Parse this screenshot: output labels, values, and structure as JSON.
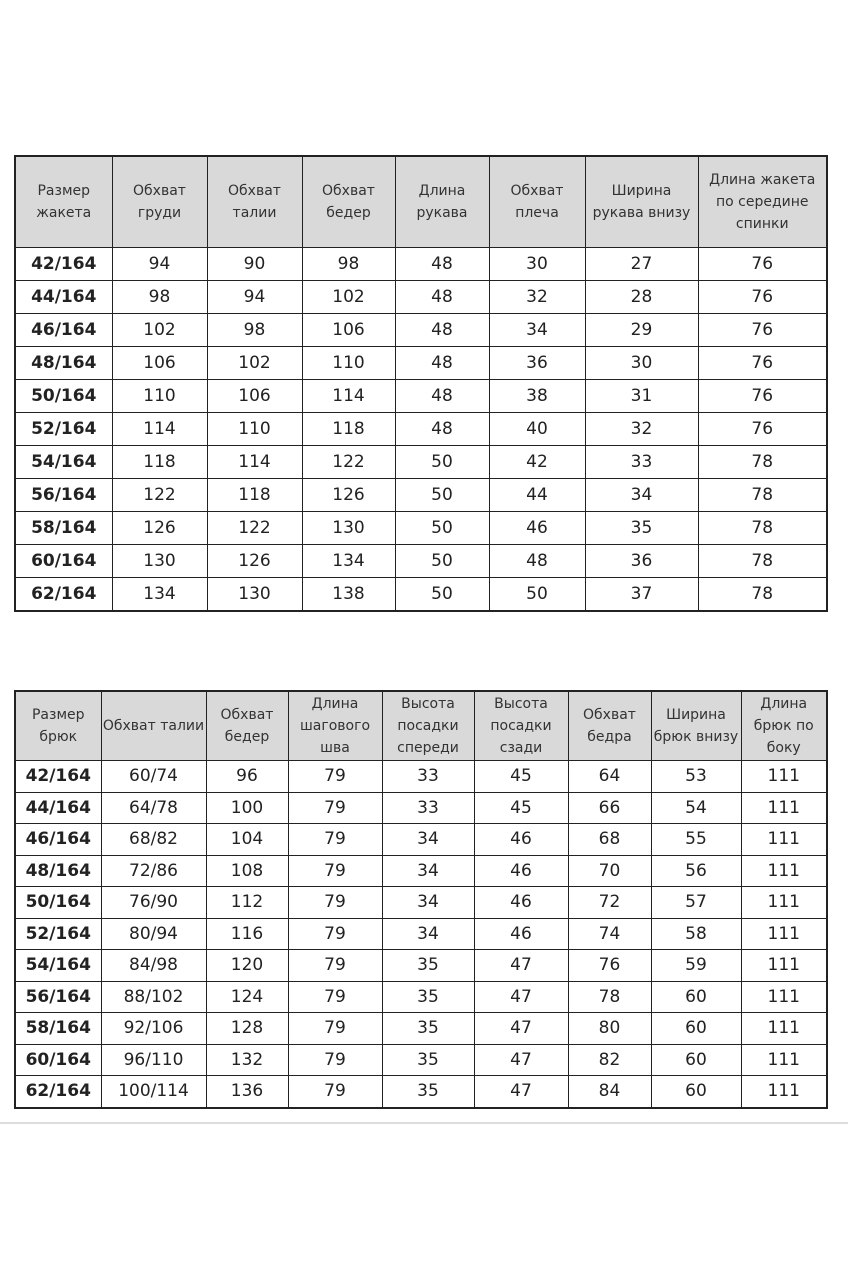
{
  "jacket_table": {
    "headers": [
      "Размер жакета",
      "Обхват груди",
      "Обхват талии",
      "Обхват бедер",
      "Длина рукава",
      "Обхват плеча",
      "Ширина рукава внизу",
      "Длина жакета по середине спинки"
    ],
    "rows": [
      [
        "42/164",
        "94",
        "90",
        "98",
        "48",
        "30",
        "27",
        "76"
      ],
      [
        "44/164",
        "98",
        "94",
        "102",
        "48",
        "32",
        "28",
        "76"
      ],
      [
        "46/164",
        "102",
        "98",
        "106",
        "48",
        "34",
        "29",
        "76"
      ],
      [
        "48/164",
        "106",
        "102",
        "110",
        "48",
        "36",
        "30",
        "76"
      ],
      [
        "50/164",
        "110",
        "106",
        "114",
        "48",
        "38",
        "31",
        "76"
      ],
      [
        "52/164",
        "114",
        "110",
        "118",
        "48",
        "40",
        "32",
        "76"
      ],
      [
        "54/164",
        "118",
        "114",
        "122",
        "50",
        "42",
        "33",
        "78"
      ],
      [
        "56/164",
        "122",
        "118",
        "126",
        "50",
        "44",
        "34",
        "78"
      ],
      [
        "58/164",
        "126",
        "122",
        "130",
        "50",
        "46",
        "35",
        "78"
      ],
      [
        "60/164",
        "130",
        "126",
        "134",
        "50",
        "48",
        "36",
        "78"
      ],
      [
        "62/164",
        "134",
        "130",
        "138",
        "50",
        "50",
        "37",
        "78"
      ]
    ]
  },
  "trousers_table": {
    "headers": [
      "Размер брюк",
      "Обхват талии",
      "Обхват бедер",
      "Длина шагового шва",
      "Высота посадки спереди",
      "Высота посадки сзади",
      "Обхват бедра",
      "Ширина брюк внизу",
      "Длина брюк по боку"
    ],
    "rows": [
      [
        "42/164",
        "60/74",
        "96",
        "79",
        "33",
        "45",
        "64",
        "53",
        "111"
      ],
      [
        "44/164",
        "64/78",
        "100",
        "79",
        "33",
        "45",
        "66",
        "54",
        "111"
      ],
      [
        "46/164",
        "68/82",
        "104",
        "79",
        "34",
        "46",
        "68",
        "55",
        "111"
      ],
      [
        "48/164",
        "72/86",
        "108",
        "79",
        "34",
        "46",
        "70",
        "56",
        "111"
      ],
      [
        "50/164",
        "76/90",
        "112",
        "79",
        "34",
        "46",
        "72",
        "57",
        "111"
      ],
      [
        "52/164",
        "80/94",
        "116",
        "79",
        "34",
        "46",
        "74",
        "58",
        "111"
      ],
      [
        "54/164",
        "84/98",
        "120",
        "79",
        "35",
        "47",
        "76",
        "59",
        "111"
      ],
      [
        "56/164",
        "88/102",
        "124",
        "79",
        "35",
        "47",
        "78",
        "60",
        "111"
      ],
      [
        "58/164",
        "92/106",
        "128",
        "79",
        "35",
        "47",
        "80",
        "60",
        "111"
      ],
      [
        "60/164",
        "96/110",
        "132",
        "79",
        "35",
        "47",
        "82",
        "60",
        "111"
      ],
      [
        "62/164",
        "100/114",
        "136",
        "79",
        "35",
        "47",
        "84",
        "60",
        "111"
      ]
    ]
  },
  "colors": {
    "header_bg": "#d9d9d9",
    "border": "#222222"
  }
}
